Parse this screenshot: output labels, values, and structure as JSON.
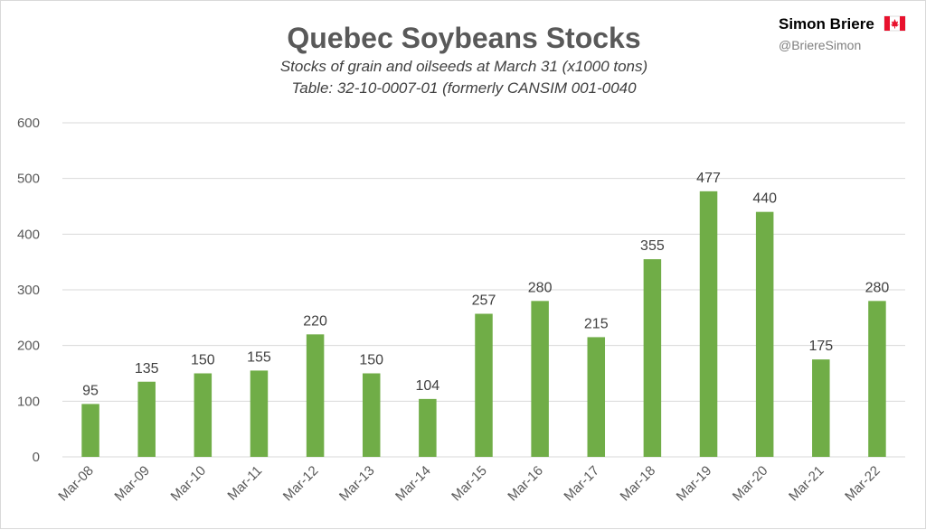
{
  "header": {
    "author": "Simon Briere",
    "handle": "@BriereSimon",
    "flag_icon": "canada-flag-icon"
  },
  "colors": {
    "bar": "#70ad47",
    "grid": "#d9d9d9",
    "flag_red": "#e8112d"
  },
  "chart_data": {
    "type": "bar",
    "title": "Quebec Soybeans Stocks",
    "subtitle": "Stocks of grain and oilseeds at March 31 (x1000 tons)",
    "subtitle2": "Table: 32-10-0007-01 (formerly CANSIM 001-0040",
    "xlabel": "",
    "ylabel": "",
    "ylim": [
      0,
      600
    ],
    "yticks": [
      0,
      100,
      200,
      300,
      400,
      500,
      600
    ],
    "grid": true,
    "legend": "none",
    "categories": [
      "Mar-08",
      "Mar-09",
      "Mar-10",
      "Mar-11",
      "Mar-12",
      "Mar-13",
      "Mar-14",
      "Mar-15",
      "Mar-16",
      "Mar-17",
      "Mar-18",
      "Mar-19",
      "Mar-20",
      "Mar-21",
      "Mar-22"
    ],
    "values": [
      95,
      135,
      150,
      155,
      220,
      150,
      104,
      257,
      280,
      215,
      355,
      477,
      440,
      175,
      280
    ]
  }
}
